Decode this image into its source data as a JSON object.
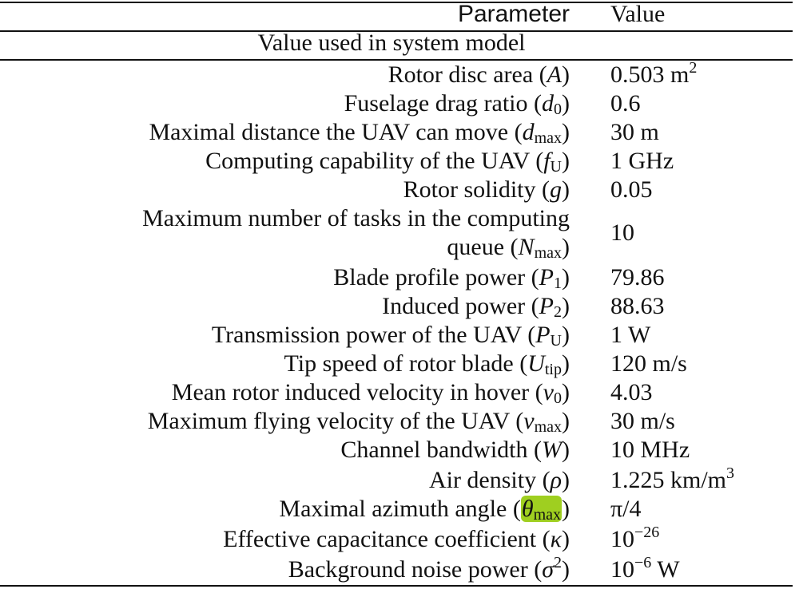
{
  "header": {
    "param_label": "Parameter",
    "value_label": "Value"
  },
  "section_title": "Value used in system model",
  "rows": [
    {
      "label": "Rotor disc area",
      "symbol": "A",
      "sub": "",
      "value": "0.503 m",
      "value_sup": "2"
    },
    {
      "label": "Fuselage drag ratio",
      "symbol": "d",
      "sub": "0",
      "value": "0.6",
      "value_sup": ""
    },
    {
      "label": "Maximal distance the UAV can move",
      "symbol": "d",
      "sub": "max",
      "value": "30 m",
      "value_sup": ""
    },
    {
      "label": "Computing capability of the UAV",
      "symbol": "f",
      "sub": "U",
      "value": "1 GHz",
      "value_sup": ""
    },
    {
      "label": "Rotor solidity",
      "symbol": "g",
      "sub": "",
      "value": "0.05",
      "value_sup": ""
    },
    {
      "label_line1": "Maximum number of tasks in the computing",
      "label_line2": "queue",
      "symbol": "N",
      "sub": "max",
      "value": "10",
      "value_sup": ""
    },
    {
      "label": "Blade profile power",
      "symbol": "P",
      "sub": "1",
      "value": "79.86",
      "value_sup": ""
    },
    {
      "label": "Induced power",
      "symbol": "P",
      "sub": "2",
      "value": "88.63",
      "value_sup": ""
    },
    {
      "label": "Transmission power of the UAV",
      "symbol": "P",
      "sub": "U",
      "value": "1 W",
      "value_sup": ""
    },
    {
      "label": "Tip speed of rotor blade",
      "symbol": "U",
      "sub": "tip",
      "value": "120 m/s",
      "value_sup": ""
    },
    {
      "label": "Mean rotor induced velocity in hover",
      "symbol": "v",
      "sub": "0",
      "value": "4.03",
      "value_sup": ""
    },
    {
      "label": "Maximum flying velocity of the UAV",
      "symbol": "v",
      "sub": "max",
      "value": "30 m/s",
      "value_sup": ""
    },
    {
      "label": "Channel bandwidth",
      "symbol": "W",
      "sub": "",
      "value": "10 MHz",
      "value_sup": ""
    },
    {
      "label": "Air density",
      "symbol": "ρ",
      "sub": "",
      "value": "1.225 km/m",
      "value_sup": "3"
    },
    {
      "label": "Maximal azimuth angle",
      "symbol": "θ",
      "sub": "max",
      "value": "π/4",
      "value_sup": ""
    },
    {
      "label": "Effective capacitance coefficient",
      "symbol": "κ",
      "sub": "",
      "value": "10",
      "value_sup": "−26"
    },
    {
      "label": "Background noise power",
      "symbol": "σ",
      "sub": "",
      "sym_sup": "2",
      "value": "10",
      "value_sup": "−6",
      "value_suffix": " W"
    }
  ],
  "highlight_color": "#9fcf20"
}
